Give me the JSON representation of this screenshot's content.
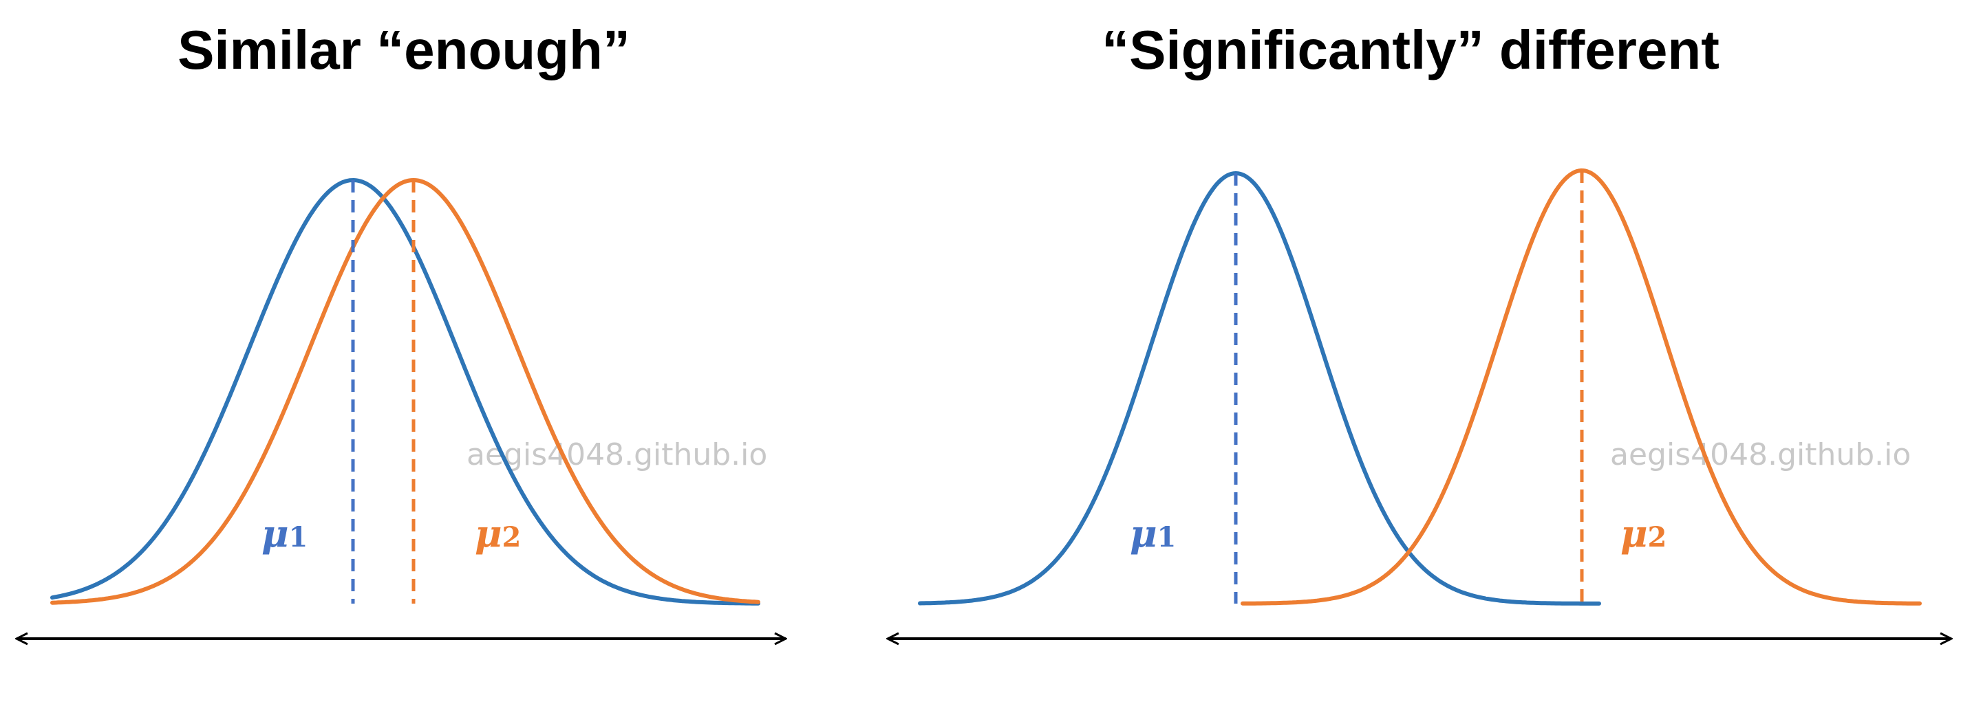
{
  "colors": {
    "group1": "#2e75b6",
    "group1_mean": "#4472c4",
    "group2": "#ed7d31",
    "axis": "#000000",
    "watermark": "#c8c8c8"
  },
  "left_panel": {
    "title": "Similar “enough”",
    "watermark": "aegis4048.github.io",
    "mu1": {
      "symbol": "μ",
      "subscript": "1"
    },
    "mu2": {
      "symbol": "μ",
      "subscript": "2"
    }
  },
  "right_panel": {
    "title": "“Significantly” different",
    "watermark": "aegis4048.github.io",
    "mu1": {
      "symbol": "μ",
      "subscript": "1"
    },
    "mu2": {
      "symbol": "μ",
      "subscript": "2"
    }
  }
}
